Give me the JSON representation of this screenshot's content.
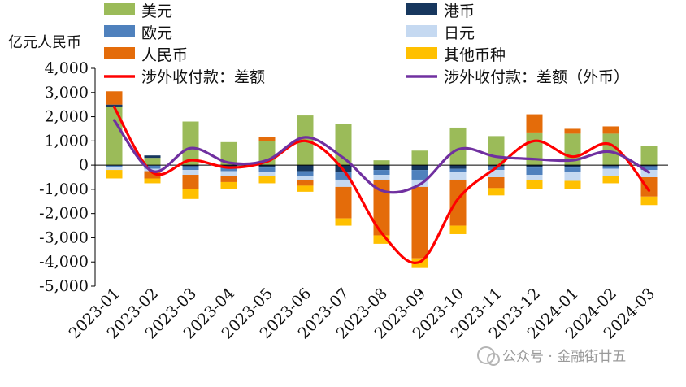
{
  "chart_data": {
    "type": "bar",
    "stacked": true,
    "unit_label": "亿元人民币",
    "categories": [
      "2023-01",
      "2023-02",
      "2023-03",
      "2023-04",
      "2023-05",
      "2023-06",
      "2023-07",
      "2023-08",
      "2023-09",
      "2023-10",
      "2023-11",
      "2023-12",
      "2024-01",
      "2024-02",
      "2024-03"
    ],
    "ylim": [
      -5000,
      4000
    ],
    "yticks": [
      -5000,
      -4000,
      -3000,
      -2000,
      -1000,
      0,
      1000,
      2000,
      3000,
      4000
    ],
    "ytick_labels": [
      "-5,000",
      "-4,000",
      "-3,000",
      "-2,000",
      "-1,000",
      "0",
      "1,000",
      "2,000",
      "3,000",
      "4,000"
    ],
    "grid": false,
    "legend_position": "top",
    "series": [
      {
        "name": "美元",
        "kind": "bar",
        "color": "#9bbb59",
        "values": [
          2400,
          300,
          1800,
          950,
          1000,
          2050,
          1700,
          200,
          600,
          1550,
          1200,
          1350,
          1300,
          1300,
          800
        ]
      },
      {
        "name": "港币",
        "kind": "bar",
        "color": "#17375e",
        "values": [
          100,
          100,
          -50,
          -50,
          -100,
          -250,
          -300,
          -200,
          -200,
          -150,
          -50,
          -100,
          -100,
          -50,
          -50
        ]
      },
      {
        "name": "欧元",
        "kind": "bar",
        "color": "#4f81bd",
        "values": [
          -100,
          -150,
          -150,
          -200,
          -200,
          -200,
          -300,
          -200,
          -400,
          -150,
          -150,
          -300,
          -200,
          -100,
          -150
        ]
      },
      {
        "name": "日元",
        "kind": "bar",
        "color": "#c5d9f1",
        "values": [
          -100,
          -100,
          -200,
          -200,
          -150,
          -150,
          -300,
          -200,
          -300,
          -300,
          -300,
          -200,
          -350,
          -300,
          -300
        ]
      },
      {
        "name": "人民币",
        "kind": "bar",
        "color": "#e46c0a",
        "values": [
          550,
          -300,
          -600,
          -250,
          150,
          -250,
          -1300,
          -2300,
          -2950,
          -1900,
          -450,
          750,
          200,
          300,
          -800
        ]
      },
      {
        "name": "其他币种",
        "kind": "bar",
        "color": "#ffc000",
        "values": [
          -350,
          -200,
          -400,
          -300,
          -300,
          -250,
          -300,
          -350,
          -400,
          -350,
          -300,
          -400,
          -350,
          -300,
          -350
        ]
      },
      {
        "name": "涉外收付款：差额",
        "kind": "line",
        "color": "#ff0000",
        "values": [
          2400,
          -300,
          200,
          -100,
          150,
          1000,
          -200,
          -2800,
          -4000,
          -1400,
          -100,
          1000,
          350,
          850,
          -1050
        ]
      },
      {
        "name": "涉外收付款：差额（外币）",
        "kind": "line",
        "color": "#7030a0",
        "values": [
          1850,
          -250,
          700,
          100,
          200,
          1150,
          300,
          -1050,
          -800,
          650,
          350,
          250,
          200,
          550,
          -300
        ]
      }
    ]
  },
  "watermark": "公众号 · 金融街廿五"
}
